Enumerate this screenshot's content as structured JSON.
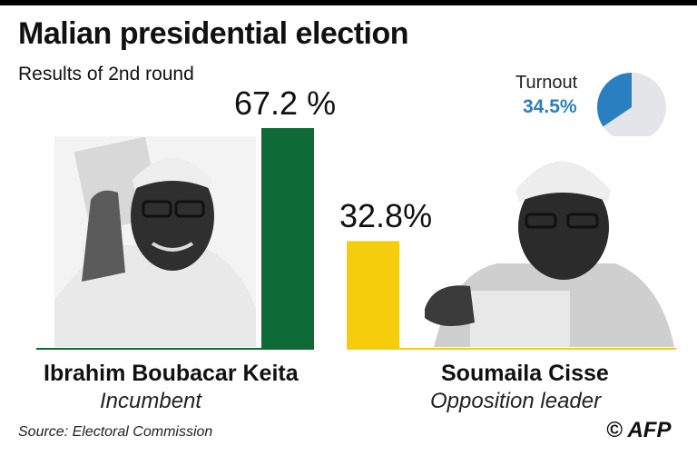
{
  "title": "Malian presidential election",
  "subtitle": "Results of 2nd round",
  "turnout": {
    "label": "Turnout",
    "value": "34.5%",
    "fraction": 0.345,
    "color": "#2a7fc0",
    "rest_color": "#e3e5e8"
  },
  "candidates": [
    {
      "name": "Ibrahim Boubacar Keita",
      "role": "Incumbent",
      "value_label": "67.2 %",
      "color": "#0e6b35"
    },
    {
      "name": "Soumaila Cisse",
      "role": "Opposition leader",
      "value_label": "32.8%",
      "color": "#f6cd0c"
    }
  ],
  "source": "Source: Electoral Commission",
  "credit": "© AFP",
  "chart_data": {
    "type": "bar",
    "title": "Malian presidential election",
    "subtitle": "Results of 2nd round",
    "categories": [
      "Ibrahim Boubacar Keita",
      "Soumaila Cisse"
    ],
    "values": [
      67.2,
      32.8
    ],
    "unit": "%",
    "colors": [
      "#0e6b35",
      "#f6cd0c"
    ],
    "ylim": [
      0,
      67.2
    ],
    "grid": false,
    "legend": "none",
    "inset": {
      "type": "pie",
      "label": "Turnout",
      "value": 34.5
    }
  }
}
